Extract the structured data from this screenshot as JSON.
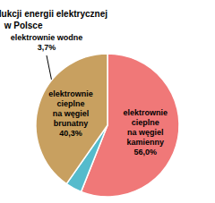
{
  "chart_data": {
    "type": "pie",
    "title": "Struktura produkcji energii elektrycznej\nw Polsce",
    "categories": [
      "elektrownie\ncieplne\nna węgiel\nkamienny",
      "elektrownie wodne",
      "elektrownie\ncieplne\nna węgiel\nbrunatny"
    ],
    "values": [
      56.0,
      3.7,
      40.3
    ],
    "value_labels": [
      "56,0%",
      "3,7%",
      "40,3%"
    ],
    "colors": [
      "#f07878",
      "#55bbcc",
      "#c8a060"
    ]
  }
}
